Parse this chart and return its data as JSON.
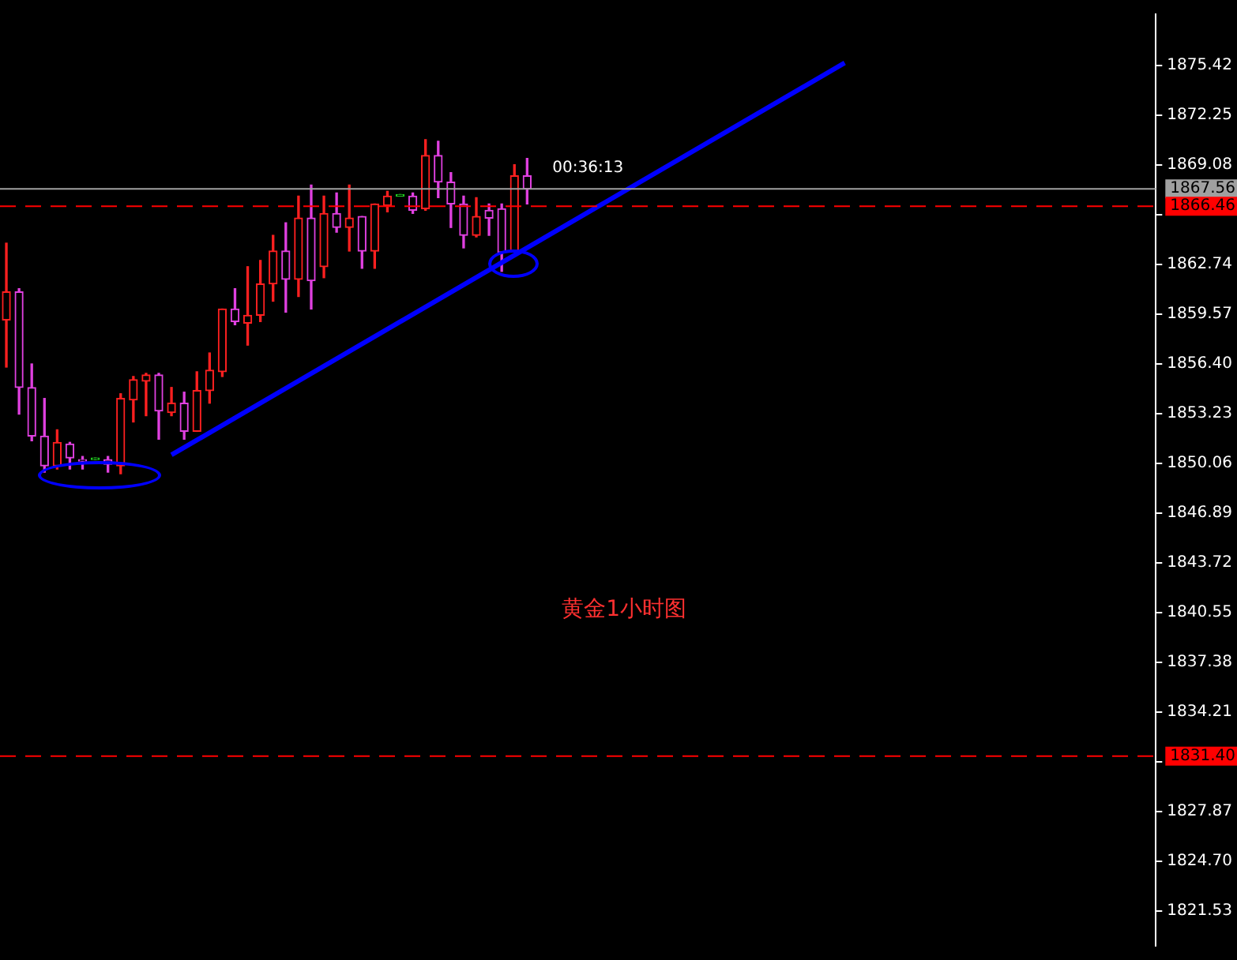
{
  "chart_data": {
    "type": "candlestick",
    "categories": [
      null,
      null,
      null,
      null,
      null,
      null,
      null,
      null,
      null,
      null,
      null,
      null,
      null,
      null,
      null,
      null,
      null,
      null,
      null,
      null,
      null,
      null,
      null,
      null,
      null,
      null,
      null,
      null,
      null,
      null,
      null,
      null,
      null,
      null,
      null,
      null,
      null,
      null,
      null,
      null,
      null,
      null,
      null,
      null,
      null,
      null,
      null,
      null,
      null,
      null,
      null,
      null,
      null,
      null,
      null,
      null,
      null,
      null,
      null,
      null,
      null,
      null,
      null,
      null,
      null,
      null,
      null,
      null,
      null,
      null,
      null,
      null,
      null,
      null,
      null,
      null,
      null,
      null,
      null,
      null,
      null,
      null,
      null,
      null,
      null,
      null,
      null,
      null,
      null,
      null,
      null
    ],
    "ohlc": [
      [
        1859.2,
        1864.1,
        1856.2,
        1861.0
      ],
      [
        1861.0,
        1861.2,
        1853.2,
        1854.9
      ],
      [
        1854.9,
        1856.4,
        1851.5,
        1851.8
      ],
      [
        1851.8,
        1854.2,
        1849.5,
        1849.9
      ],
      [
        1849.9,
        1852.2,
        1849.7,
        1851.4
      ],
      [
        1851.3,
        1851.4,
        1849.7,
        1850.4
      ],
      [
        1850.3,
        1850.5,
        1849.7,
        1850.2
      ],
      [
        1850.3,
        1850.3,
        1850.3,
        1850.3
      ],
      [
        1850.3,
        1850.5,
        1849.5,
        1850.0
      ],
      [
        1849.9,
        1854.5,
        1849.4,
        1854.2
      ],
      [
        1854.1,
        1855.6,
        1852.7,
        1855.4
      ],
      [
        1855.3,
        1855.8,
        1853.1,
        1855.7
      ],
      [
        1855.7,
        1855.8,
        1851.6,
        1853.4
      ],
      [
        1853.3,
        1854.9,
        1853.1,
        1853.9
      ],
      [
        1853.9,
        1854.6,
        1851.6,
        1852.1
      ],
      [
        1852.1,
        1855.9,
        1852.1,
        1854.7
      ],
      [
        1854.7,
        1857.1,
        1853.9,
        1856.0
      ],
      [
        1855.9,
        1859.9,
        1855.6,
        1859.9
      ],
      [
        1859.9,
        1861.2,
        1858.9,
        1859.1
      ],
      [
        1859.0,
        1862.6,
        1857.6,
        1859.5
      ],
      [
        1859.5,
        1863.0,
        1859.1,
        1861.5
      ],
      [
        1861.5,
        1864.6,
        1860.4,
        1863.6
      ],
      [
        1863.6,
        1865.4,
        1859.7,
        1861.8
      ],
      [
        1861.8,
        1867.1,
        1860.7,
        1865.7
      ],
      [
        1865.7,
        1867.8,
        1859.9,
        1861.7
      ],
      [
        1862.6,
        1867.1,
        1861.9,
        1866.0
      ],
      [
        1866.0,
        1867.3,
        1864.8,
        1865.1
      ],
      [
        1865.1,
        1867.8,
        1863.6,
        1865.7
      ],
      [
        1865.8,
        1865.8,
        1862.5,
        1863.6
      ],
      [
        1863.6,
        1866.6,
        1862.5,
        1866.6
      ],
      [
        1866.5,
        1867.4,
        1866.1,
        1867.1
      ],
      [
        1867.1,
        1867.1,
        1867.1,
        1867.1
      ],
      [
        1867.1,
        1867.3,
        1866.0,
        1866.2
      ],
      [
        1866.3,
        1870.7,
        1866.2,
        1869.7
      ],
      [
        1869.7,
        1870.6,
        1867.0,
        1868.0
      ],
      [
        1868.0,
        1868.6,
        1865.1,
        1866.6
      ],
      [
        1866.6,
        1867.1,
        1863.8,
        1864.6
      ],
      [
        1864.6,
        1867.0,
        1864.5,
        1865.8
      ],
      [
        1866.2,
        1866.6,
        1864.6,
        1865.7
      ],
      [
        1866.3,
        1866.6,
        1862.3,
        1863.5
      ],
      [
        1863.6,
        1869.1,
        1863.6,
        1868.4
      ],
      [
        1868.4,
        1869.5,
        1866.6,
        1867.56
      ],
      null,
      null,
      null,
      null,
      null,
      null,
      null,
      null,
      null,
      null,
      null,
      null,
      null,
      null,
      null,
      null,
      null,
      null,
      null,
      null,
      null,
      null,
      null,
      null,
      null,
      null,
      null,
      null,
      null,
      null,
      null,
      null,
      null,
      null,
      null,
      null,
      null,
      null,
      null,
      null,
      null,
      null,
      null,
      null,
      null,
      null,
      null,
      null,
      null
    ],
    "colors": [
      "#ff2020",
      "#e040e0",
      "#e040e0",
      "#e040e0",
      "#ff2020",
      "#e040e0",
      "#e040e0",
      "#20d020",
      "#e040e0",
      "#ff2020",
      "#ff2020",
      "#ff2020",
      "#e040e0",
      "#ff2020",
      "#e040e0",
      "#ff2020",
      "#ff2020",
      "#ff2020",
      "#e040e0",
      "#ff2020",
      "#ff2020",
      "#ff2020",
      "#e040e0",
      "#ff2020",
      "#e040e0",
      "#ff2020",
      "#e040e0",
      "#ff2020",
      "#e040e0",
      "#ff2020",
      "#ff2020",
      "#20d020",
      "#e040e0",
      "#ff2020",
      "#e040e0",
      "#e040e0",
      "#e040e0",
      "#ff2020",
      "#e040e0",
      "#e040e0",
      "#ff2020",
      "#e040e0",
      null,
      null,
      null,
      null,
      null,
      null,
      null,
      null,
      null,
      null,
      null,
      null,
      null,
      null,
      null,
      null,
      null,
      null,
      null,
      null,
      null,
      null,
      null,
      null,
      null,
      null,
      null,
      null,
      null,
      null,
      null,
      null,
      null,
      null,
      null,
      null,
      null,
      null,
      null,
      null,
      null,
      null,
      null,
      null,
      null,
      null,
      null,
      null,
      null
    ],
    "series": [
      {
        "type": "line",
        "color": "#0000ff",
        "values": [
          null,
          null,
          null,
          null,
          null,
          null,
          null,
          null,
          null,
          null,
          null,
          null,
          null,
          1850.6,
          null,
          null,
          null,
          null,
          null,
          null,
          null,
          null,
          null,
          null,
          null,
          null,
          null,
          null,
          null,
          null,
          null,
          null,
          null,
          null,
          null,
          null,
          null,
          null,
          null,
          null,
          null,
          null,
          null,
          null,
          null,
          null,
          null,
          null,
          null,
          null,
          null,
          null,
          null,
          null,
          null,
          null,
          null,
          null,
          null,
          null,
          null,
          null,
          null,
          null,
          null,
          null,
          1875.6,
          null,
          null,
          null,
          null,
          null,
          null,
          null,
          null,
          null,
          null,
          null,
          null,
          null,
          null,
          null,
          null,
          null,
          null,
          null,
          null,
          null,
          null,
          null,
          null
        ]
      }
    ],
    "ylim": [
      1819.3,
      1878.7
    ],
    "yticks": [
      1821.53,
      {
        "value": 1824.7,
        "label": "1824.70"
      },
      1827.87,
      {
        "value": 1831.04,
        "label": null
      },
      1834.21,
      1837.38,
      1840.55,
      1843.72,
      1846.89,
      1850.06,
      1853.23,
      {
        "value": 1856.4,
        "label": "1856.40"
      },
      1859.57,
      1862.74,
      {
        "value": 1865.91,
        "label": null
      },
      1869.08,
      1872.25,
      1875.42
    ],
    "tick_labels": "y",
    "ref_lines": [
      {
        "axis": "y",
        "value": 1867.56,
        "label": "1867.56",
        "color": "#a0a0a0",
        "line_style": "solid"
      },
      {
        "axis": "y",
        "value": 1866.46,
        "label": "1866.46",
        "color": "#ff0000",
        "line_style": "dashed"
      },
      {
        "axis": "y",
        "value": 1831.4,
        "label": "1831.40",
        "color": "#ff0000",
        "line_style": "dashed"
      }
    ],
    "annotations": [
      "00:36:13",
      "黄金1小时图"
    ],
    "grid": false,
    "legend": false
  }
}
